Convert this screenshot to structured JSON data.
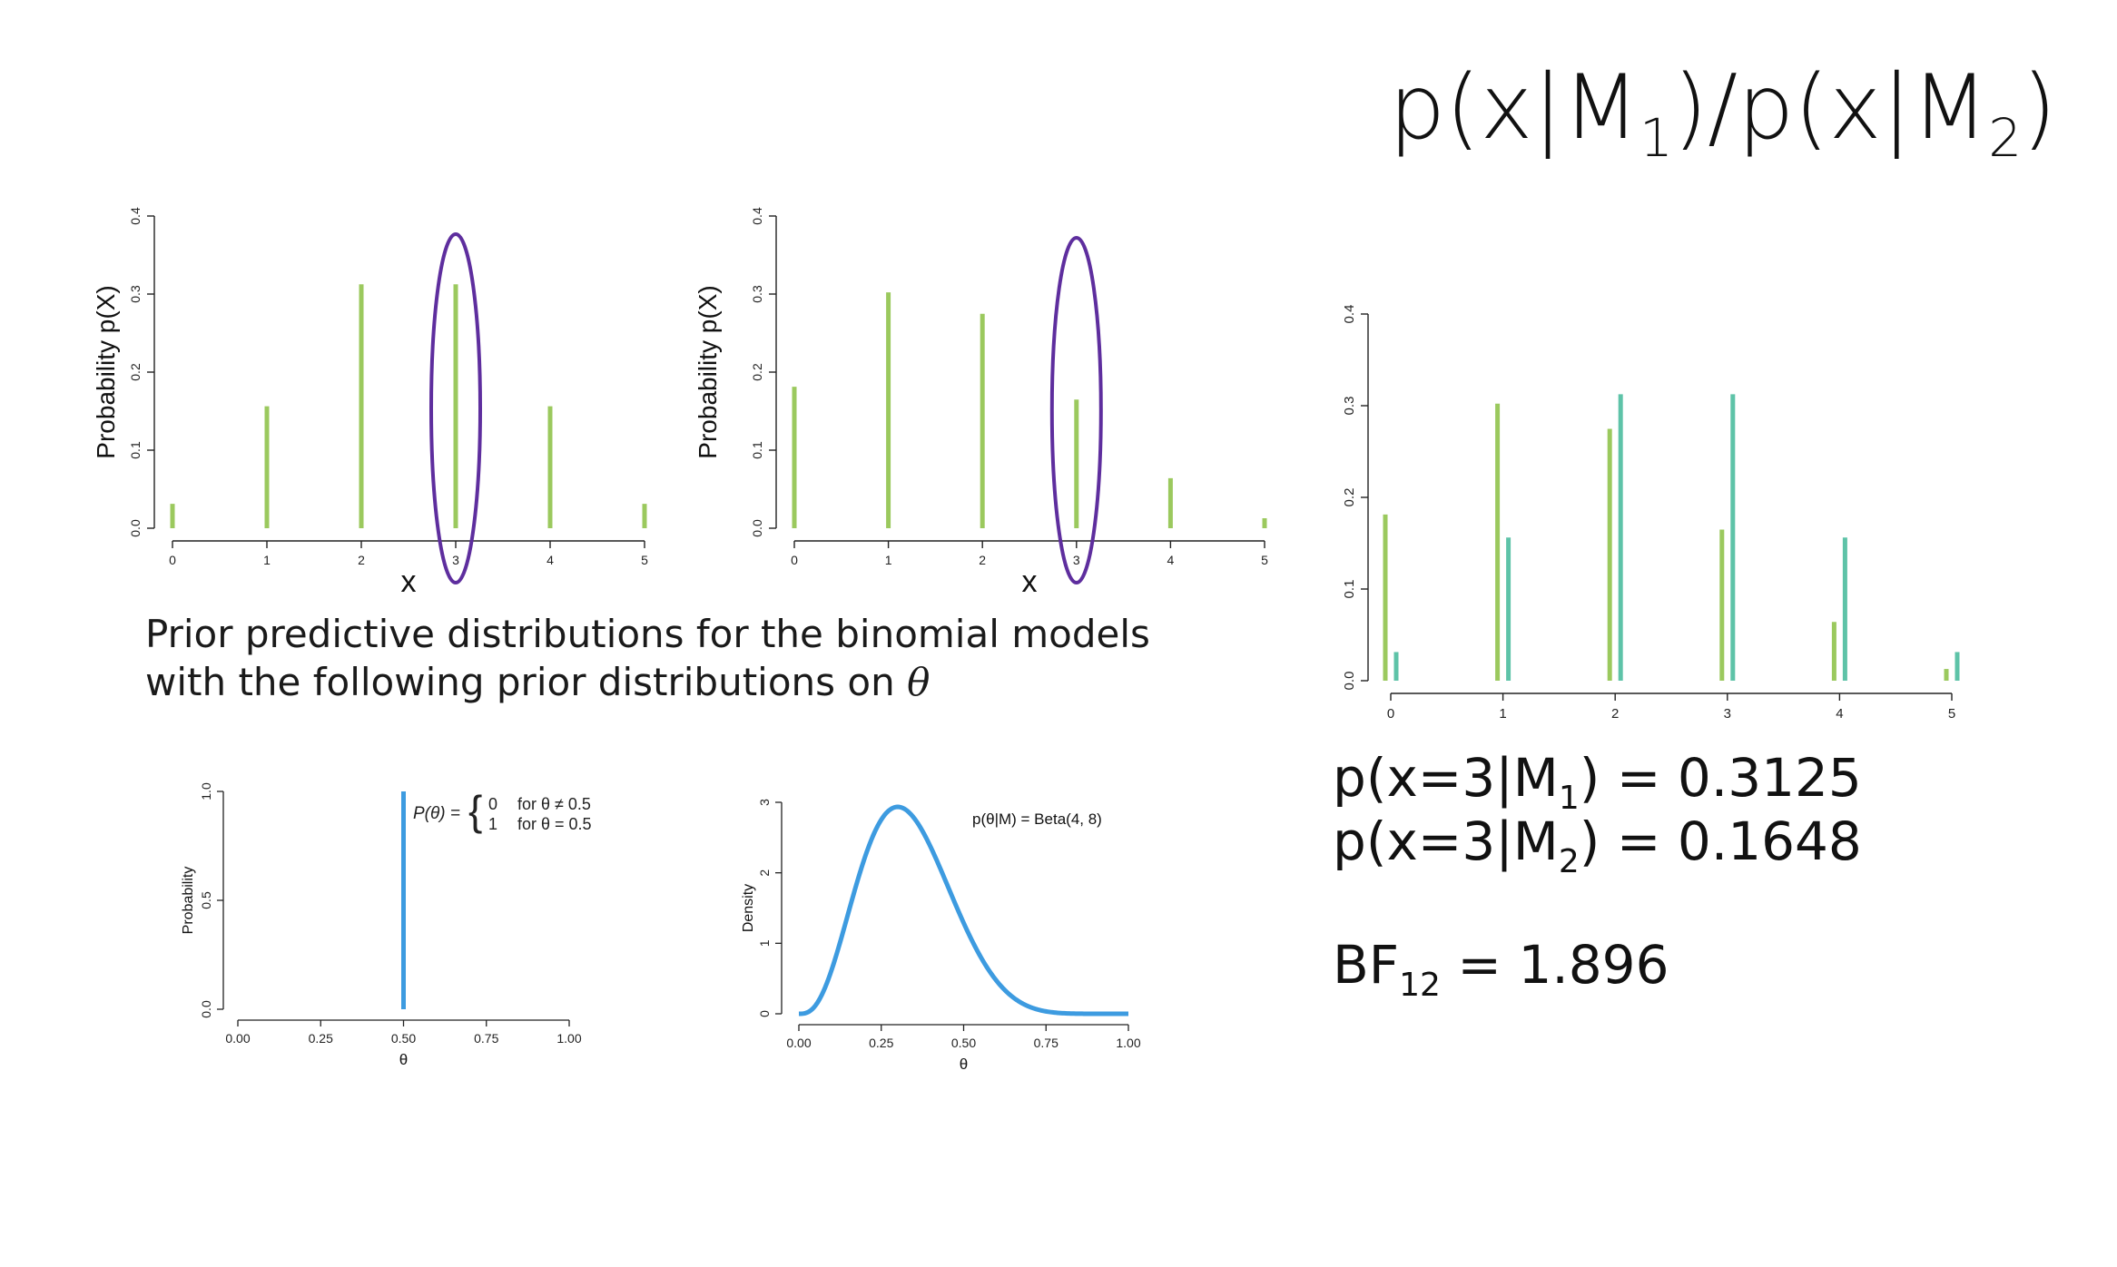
{
  "title": {
    "prefix": "p(x|M",
    "sub1": "1",
    "middle": ")/p(x|M",
    "sub2": "2",
    "suffix": ")"
  },
  "caption": {
    "line1": "Prior predictive distributions for the binomial models",
    "line2": "with the following prior distributions on ",
    "theta": "θ"
  },
  "results": {
    "r1_prefix": "p(x=3|M",
    "r1_sub": "1",
    "r1_suffix": ") = 0.3125",
    "r2_prefix": "p(x=3|M",
    "r2_sub": "2",
    "r2_suffix": ") = 0.1648",
    "bf_prefix": "BF",
    "bf_sub": "12",
    "bf_suffix": " = 1.896"
  },
  "colors": {
    "green": "#9bc95e",
    "teal": "#5ec3a8",
    "blue": "#3d9be0",
    "purple": "#5e2e9e",
    "axis": "#222222"
  },
  "chart_data": [
    {
      "id": "m1_predictive",
      "type": "bar",
      "xlabel": "x",
      "ylabel": "Probability p(X)",
      "x": [
        0,
        1,
        2,
        3,
        4,
        5
      ],
      "xticks": [
        "0",
        "1",
        "2",
        "3",
        "4",
        "5"
      ],
      "yticks": [
        "0.0",
        "0.1",
        "0.2",
        "0.3",
        "0.4"
      ],
      "ylim": [
        0,
        0.4
      ],
      "series": [
        {
          "values": [
            0.03125,
            0.15625,
            0.3125,
            0.3125,
            0.15625,
            0.03125
          ],
          "color": "#9bc95e"
        }
      ],
      "highlight_x": 3
    },
    {
      "id": "m2_predictive",
      "type": "bar",
      "xlabel": "x",
      "ylabel": "Probability p(X)",
      "x": [
        0,
        1,
        2,
        3,
        4,
        5
      ],
      "xticks": [
        "0",
        "1",
        "2",
        "3",
        "4",
        "5"
      ],
      "yticks": [
        "0.0",
        "0.1",
        "0.2",
        "0.3",
        "0.4"
      ],
      "ylim": [
        0,
        0.4
      ],
      "series": [
        {
          "values": [
            0.1813,
            0.3022,
            0.2747,
            0.1648,
            0.0641,
            0.0128
          ],
          "color": "#9bc95e"
        }
      ],
      "highlight_x": 3
    },
    {
      "id": "comparison",
      "type": "bar",
      "xlabel": "",
      "ylabel": "",
      "x": [
        0,
        1,
        2,
        3,
        4,
        5
      ],
      "xticks": [
        "0",
        "1",
        "2",
        "3",
        "4",
        "5"
      ],
      "yticks": [
        "0.0",
        "0.1",
        "0.2",
        "0.3",
        "0.4"
      ],
      "ylim": [
        0,
        0.4
      ],
      "series": [
        {
          "values": [
            0.03125,
            0.15625,
            0.3125,
            0.3125,
            0.15625,
            0.03125
          ],
          "color": "#5ec3a8"
        },
        {
          "values": [
            0.1813,
            0.3022,
            0.2747,
            0.1648,
            0.0641,
            0.0128
          ],
          "color": "#9bc95e"
        }
      ]
    },
    {
      "id": "prior_point",
      "type": "line",
      "xlabel": "θ",
      "ylabel": "Probability",
      "xticks": [
        "0.00",
        "0.25",
        "0.50",
        "0.75",
        "1.00"
      ],
      "yticks": [
        "0.0",
        "0.5",
        "1.0"
      ],
      "ylim": [
        0,
        1
      ],
      "spike_x": 0.5,
      "spike_y": 1.0,
      "annotation": {
        "lhs": "P(θ) =",
        "row1_val": "0",
        "row1_cond": "for θ ≠ 0.5",
        "row2_val": "1",
        "row2_cond": "for θ = 0.5"
      }
    },
    {
      "id": "prior_beta",
      "type": "line",
      "xlabel": "θ",
      "ylabel": "Density",
      "xticks": [
        "0.00",
        "0.25",
        "0.50",
        "0.75",
        "1.00"
      ],
      "yticks": [
        "0",
        "1",
        "2",
        "3"
      ],
      "ylim": [
        0,
        3
      ],
      "beta_a": 4,
      "beta_b": 8,
      "annotation": "p(θ|M) = Beta(4, 8)"
    }
  ]
}
